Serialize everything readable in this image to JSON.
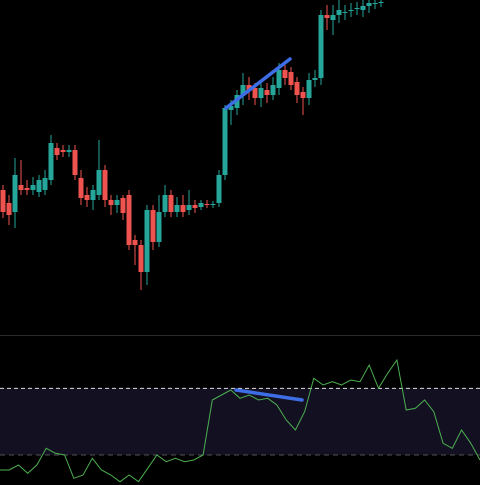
{
  "chart_data": [
    {
      "type": "candlestick",
      "up_color": "#26a69a",
      "down_color": "#ef5350",
      "ylim": [
        0,
        335
      ],
      "open": [
        145,
        132,
        123,
        150,
        147,
        145,
        143,
        145,
        155,
        187,
        185,
        183,
        185,
        157,
        140,
        135,
        140,
        165,
        135,
        130,
        137,
        140,
        95,
        90,
        63,
        125,
        93,
        123,
        140,
        123,
        130,
        125,
        130,
        128,
        131,
        130,
        132,
        160,
        225,
        227,
        240,
        250,
        247,
        237,
        245,
        240,
        247,
        265,
        263,
        253,
        243,
        237,
        255,
        257,
        320,
        315,
        320,
        323,
        325,
        327,
        325,
        329,
        331,
        333
      ],
      "high": [
        150,
        140,
        177,
        175,
        155,
        158,
        160,
        165,
        200,
        192,
        190,
        190,
        190,
        165,
        148,
        150,
        195,
        170,
        140,
        140,
        140,
        145,
        100,
        95,
        130,
        130,
        140,
        150,
        145,
        138,
        140,
        145,
        135,
        135,
        135,
        134,
        165,
        230,
        235,
        245,
        262,
        258,
        252,
        255,
        252,
        258,
        272,
        270,
        268,
        258,
        248,
        262,
        265,
        325,
        330,
        330,
        335,
        330,
        332,
        333,
        335,
        335,
        335,
        335
      ],
      "low": [
        117,
        110,
        107,
        140,
        140,
        140,
        138,
        140,
        150,
        175,
        178,
        178,
        155,
        130,
        128,
        125,
        135,
        128,
        120,
        122,
        115,
        85,
        70,
        45,
        50,
        85,
        88,
        118,
        118,
        118,
        118,
        120,
        122,
        125,
        127,
        127,
        128,
        155,
        210,
        220,
        230,
        235,
        230,
        228,
        232,
        235,
        240,
        250,
        245,
        232,
        220,
        230,
        248,
        250,
        305,
        300,
        312,
        315,
        318,
        320,
        318,
        322,
        326,
        328
      ],
      "close": [
        123,
        120,
        160,
        145,
        145,
        150,
        155,
        157,
        192,
        180,
        183,
        185,
        160,
        137,
        135,
        145,
        165,
        135,
        130,
        135,
        122,
        90,
        90,
        63,
        125,
        93,
        123,
        140,
        123,
        130,
        123,
        130,
        127,
        132,
        130,
        131,
        160,
        227,
        229,
        240,
        250,
        245,
        237,
        247,
        240,
        250,
        265,
        257,
        250,
        240,
        237,
        255,
        257,
        320,
        317,
        320,
        325,
        323,
        325,
        327,
        329,
        332,
        332,
        333
      ]
    },
    {
      "type": "line",
      "color": "#4caf50",
      "ylim": [
        12,
        102
      ],
      "levels": [
        70,
        30
      ],
      "values": [
        21,
        21,
        24,
        19,
        24,
        34,
        31,
        30,
        16,
        18,
        28,
        21,
        18,
        14,
        18,
        14,
        22,
        30,
        26,
        28,
        26,
        27,
        30,
        63,
        66,
        69,
        64,
        66,
        63,
        64,
        60,
        51,
        45,
        56,
        76,
        72,
        74,
        72,
        75,
        74,
        84,
        70,
        79,
        87,
        57,
        58,
        63,
        56,
        37,
        34,
        45,
        37,
        27
      ]
    }
  ]
}
